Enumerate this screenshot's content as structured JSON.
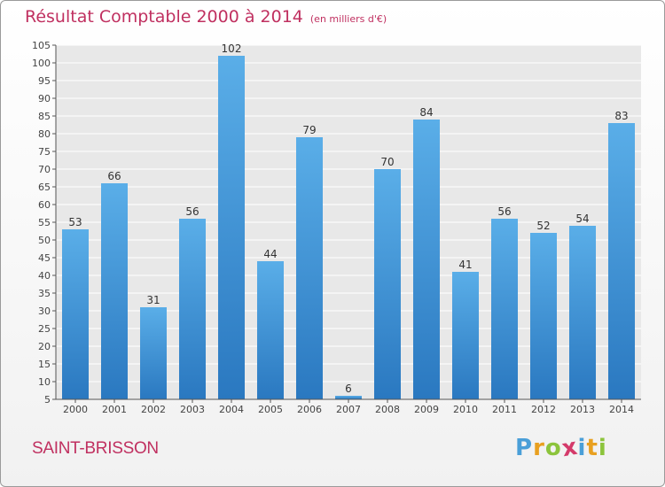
{
  "chart_data": {
    "type": "bar",
    "title": "Résultat Comptable 2000 à 2014",
    "subtitle": "(en milliers d'€)",
    "categories": [
      "2000",
      "2001",
      "2002",
      "2003",
      "2004",
      "2005",
      "2006",
      "2007",
      "2008",
      "2009",
      "2010",
      "2011",
      "2012",
      "2013",
      "2014"
    ],
    "values": [
      53,
      66,
      31,
      56,
      102,
      44,
      79,
      6,
      70,
      84,
      41,
      56,
      52,
      54,
      83
    ],
    "ylim": [
      5,
      105
    ],
    "yticks": [
      5,
      10,
      15,
      20,
      25,
      30,
      35,
      40,
      45,
      50,
      55,
      60,
      65,
      70,
      75,
      80,
      85,
      90,
      95,
      100,
      105
    ],
    "xlabel": "",
    "ylabel": "",
    "grid": true
  },
  "commune": "SAINT-BRISSON",
  "brand": {
    "letters": [
      "P",
      "r",
      "o",
      "x",
      "i",
      "t",
      "i"
    ],
    "colors": [
      "#4a9fd8",
      "#e8a020",
      "#8cc43c",
      "#d43a6a",
      "#4a9fd8",
      "#e8a020",
      "#8cc43c"
    ]
  },
  "colors": {
    "bar_top": "#5aaee8",
    "bar_bottom": "#2a78c0",
    "title": "#c03060",
    "plot_bg": "#e8e8e8"
  }
}
